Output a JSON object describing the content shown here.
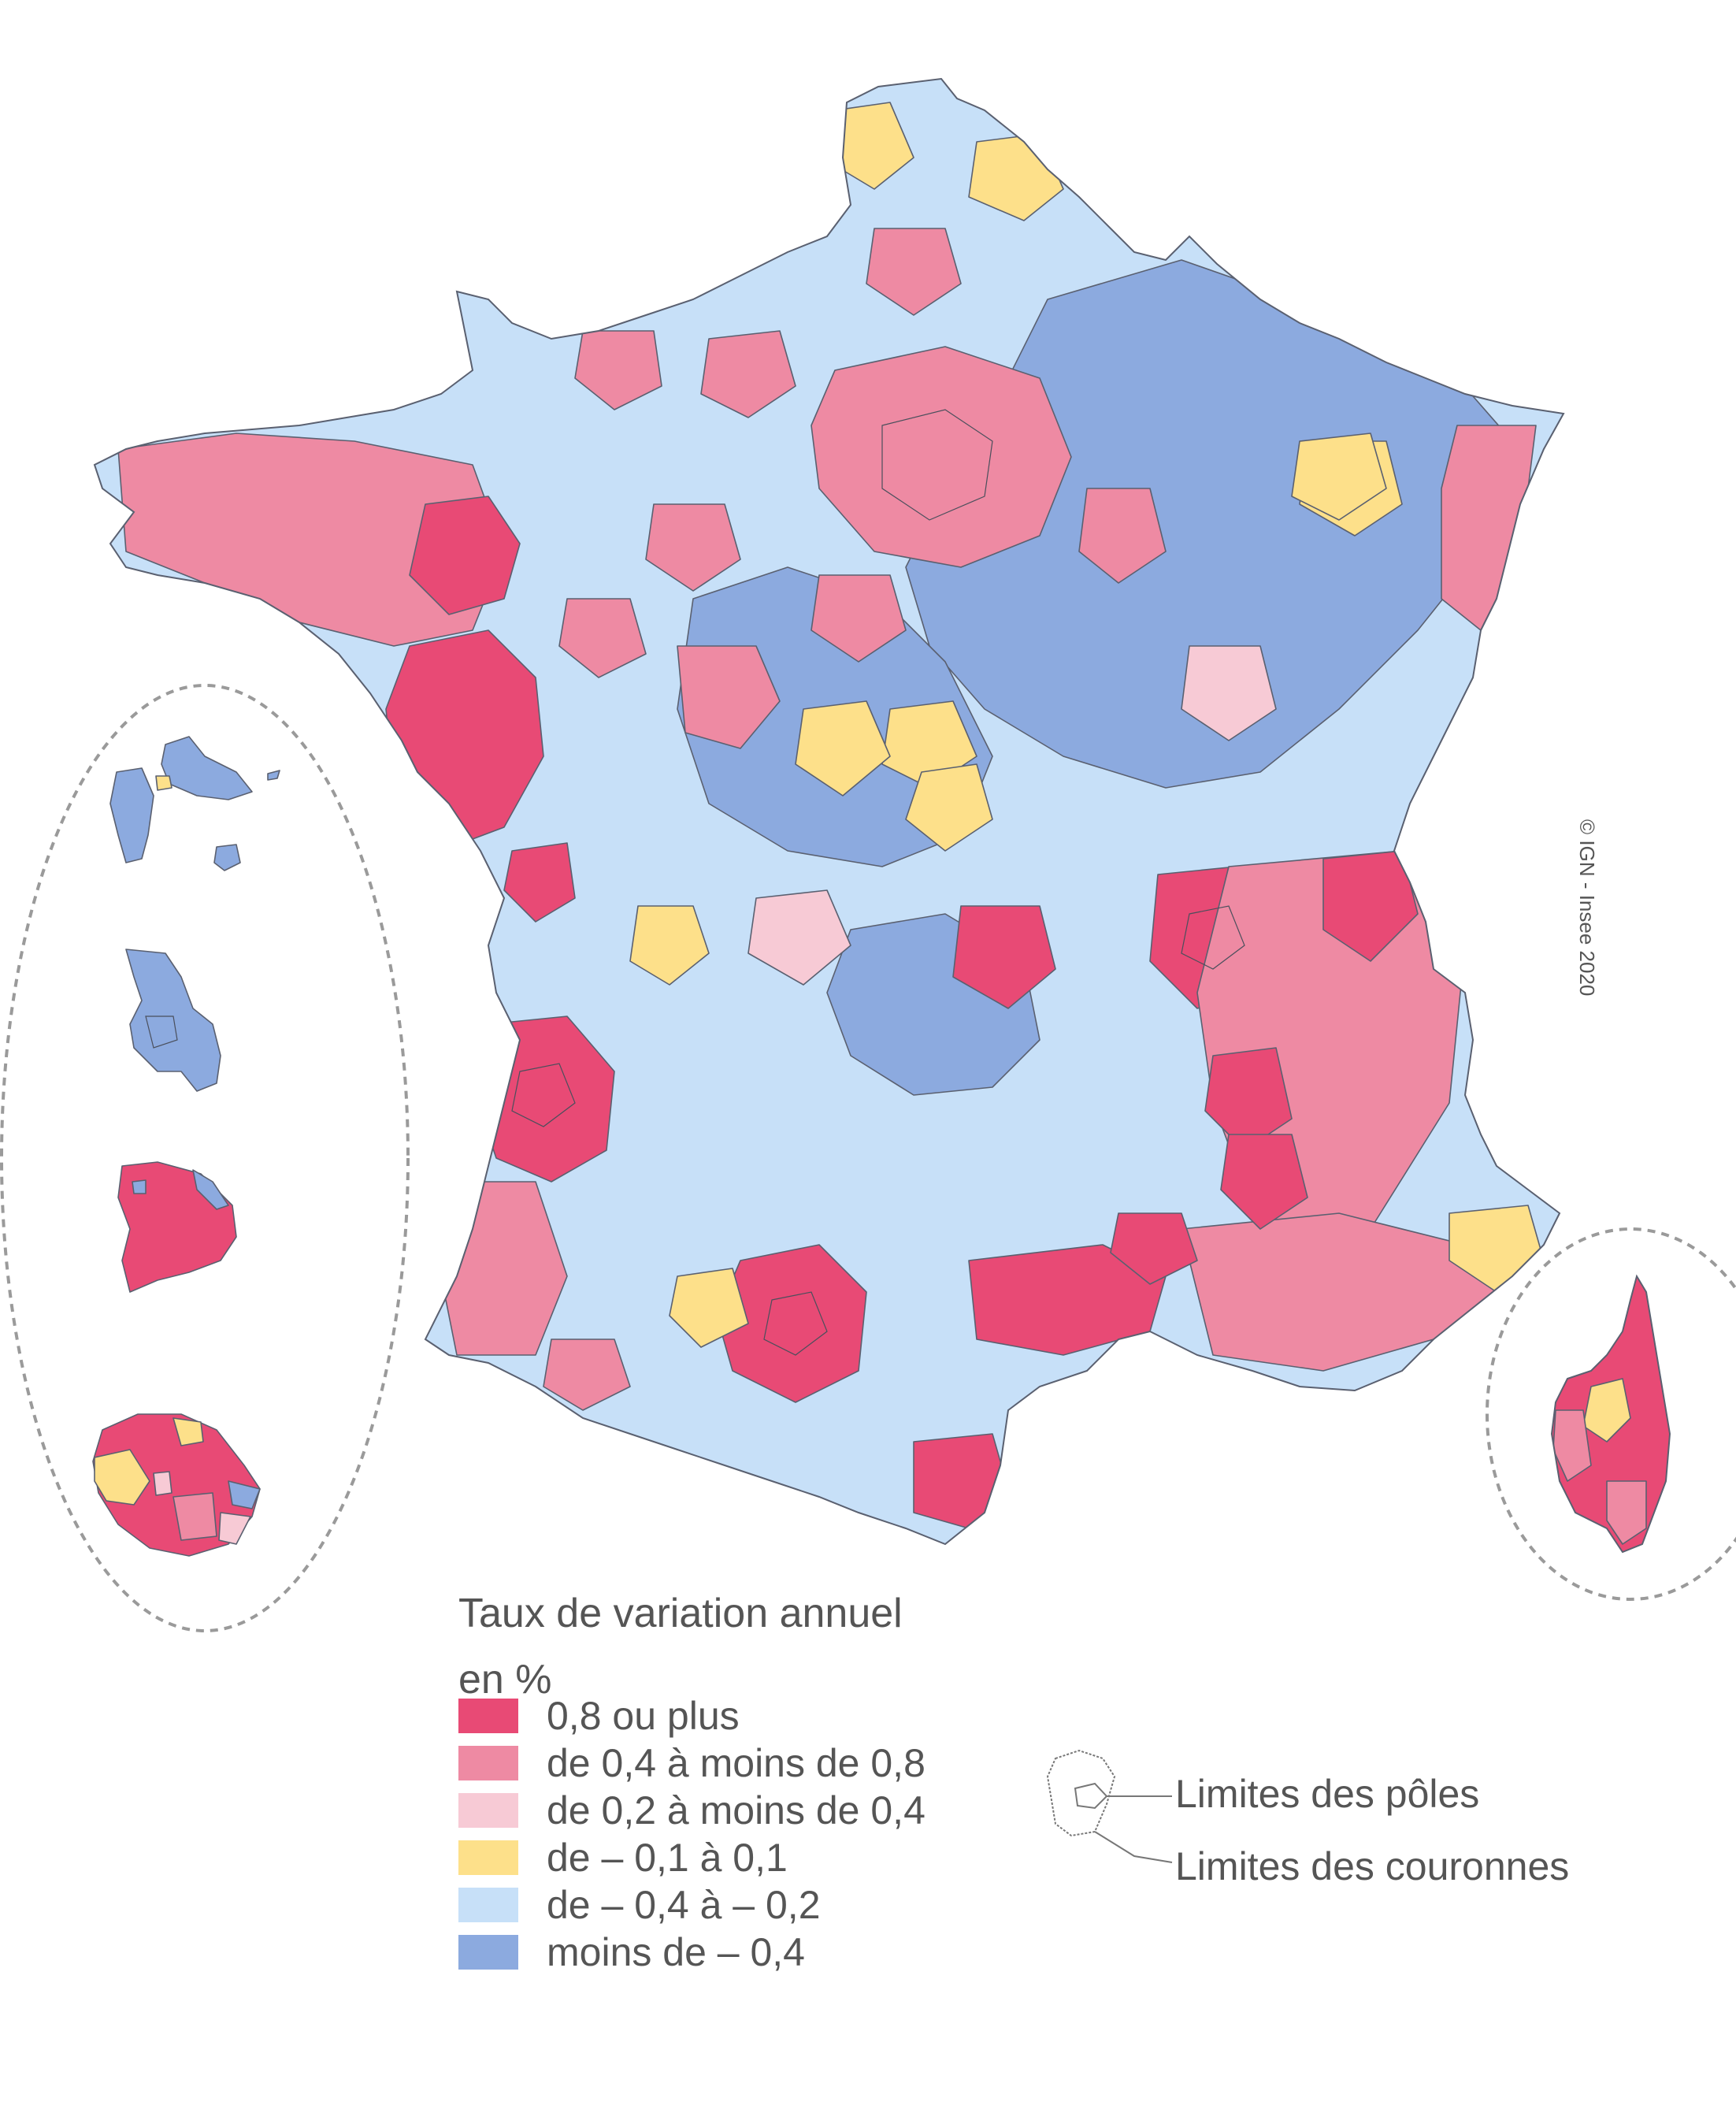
{
  "legend": {
    "title_line1": "Taux de variation annuel",
    "title_line2": "en %",
    "items": [
      {
        "label": "0,8 ou plus",
        "color": "#e84a75"
      },
      {
        "label": "de 0,4 à moins de 0,8",
        "color": "#ee8aa3"
      },
      {
        "label": "de 0,2 à moins de 0,4",
        "color": "#f7cad5"
      },
      {
        "label": "de – 0,1 à 0,1",
        "color": "#fde08a"
      },
      {
        "label": "de – 0,4 à – 0,2",
        "color": "#c7e0f8"
      },
      {
        "label": "moins de – 0,4",
        "color": "#8caadf"
      }
    ]
  },
  "limits": {
    "poles_label": "Limites des pôles",
    "couronnes_label": "Limites des couronnes"
  },
  "credit": "© IGN - Insee 2020",
  "map": {
    "territories": [
      "France métropolitaine",
      "Corse",
      "Guadeloupe",
      "Martinique",
      "Guyane",
      "La Réunion"
    ]
  }
}
